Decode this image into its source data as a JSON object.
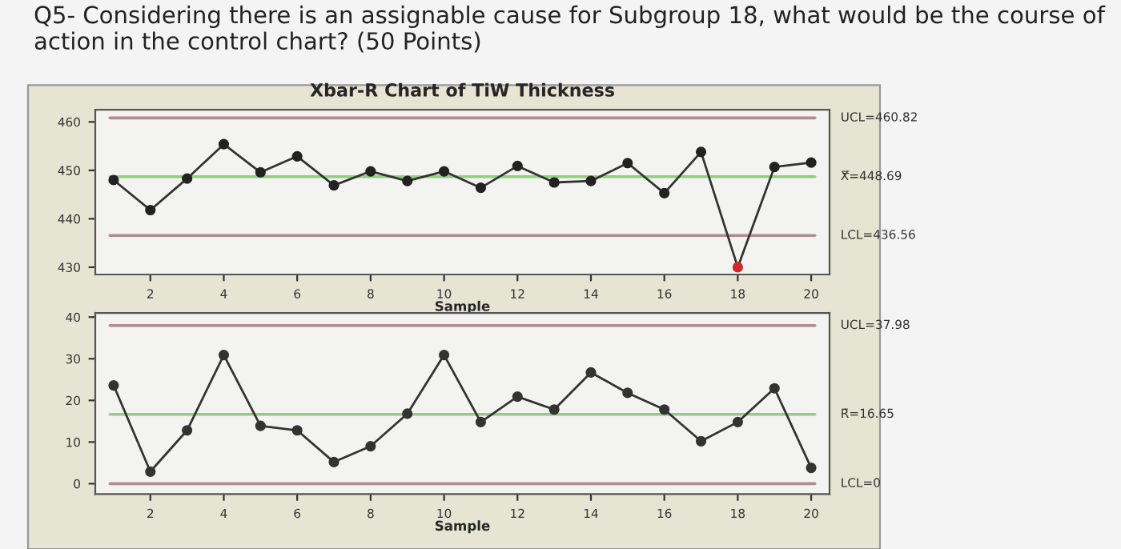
{
  "chart_data": [
    {
      "type": "line",
      "title": "Xbar-R Chart of TiW Thickness",
      "annotations": [
        "Q5- Considering there is an assignable cause for Subgroup 18, what would be the course of action in the control chart? (50 Points)"
      ],
      "x": [
        1,
        2,
        3,
        4,
        5,
        6,
        7,
        8,
        9,
        10,
        11,
        12,
        13,
        14,
        15,
        16,
        17,
        18,
        19,
        20
      ],
      "series": [
        {
          "color": "#333333",
          "colors": [
            "#222222",
            "#222222",
            "#222222",
            "#222222",
            "#222222",
            "#222222",
            "#222222",
            "#222222",
            "#222222",
            "#222222",
            "#222222",
            "#222222",
            "#222222",
            "#222222",
            "#222222",
            "#222222",
            "#222222",
            "#d62728",
            "#222222",
            "#222222"
          ],
          "values": [
            448,
            441.8,
            448.3,
            455.4,
            449.6,
            452.9,
            446.9,
            449.8,
            447.8,
            449.8,
            446.4,
            450.9,
            447.5,
            447.8,
            451.5,
            445.3,
            453.8,
            430,
            450.7,
            451.6
          ]
        }
      ],
      "xlabel": "Sample",
      "xlim": [
        0.5,
        20.5
      ],
      "xticks": [
        2,
        4,
        6,
        8,
        10,
        12,
        14,
        16,
        18,
        20
      ],
      "ylim": [
        428.5,
        462.5
      ],
      "yticks": [
        430,
        440,
        450,
        460
      ],
      "ref_lines": [
        {
          "axis": "y",
          "value": 460.82,
          "label": "UCL=460.82",
          "color": "#b08a94"
        },
        {
          "axis": "y",
          "value": 448.69,
          "label": "X̿=448.69",
          "color": "#8fcf7f"
        },
        {
          "axis": "y",
          "value": 436.56,
          "label": "LCL=436.56",
          "color": "#b08a94"
        }
      ],
      "marker": "circle",
      "grid": false
    },
    {
      "type": "line",
      "x": [
        1,
        2,
        3,
        4,
        5,
        6,
        7,
        8,
        9,
        10,
        11,
        12,
        13,
        14,
        15,
        16,
        17,
        18,
        19,
        20
      ],
      "series": [
        {
          "color": "#333333",
          "values": [
            23.6,
            2.9,
            12.8,
            30.9,
            13.9,
            12.8,
            5.2,
            9,
            16.8,
            30.9,
            14.8,
            20.9,
            17.8,
            26.7,
            21.8,
            17.8,
            10.2,
            14.8,
            22.9,
            3.8
          ]
        }
      ],
      "xlabel": "Sample",
      "xlim": [
        0.5,
        20.5
      ],
      "xticks": [
        2,
        4,
        6,
        8,
        10,
        12,
        14,
        16,
        18,
        20
      ],
      "ylim": [
        -2.5,
        41
      ],
      "yticks": [
        0,
        10,
        20,
        30,
        40
      ],
      "ref_lines": [
        {
          "axis": "y",
          "value": 37.98,
          "label": "UCL=37.98",
          "color": "#b08a94"
        },
        {
          "axis": "y",
          "value": 16.65,
          "label": "R̄=16.65",
          "color": "#8fcf7f"
        },
        {
          "axis": "y",
          "value": 0,
          "label": "LCL=0",
          "color": "#b08a94"
        }
      ],
      "marker": "circle",
      "grid": false
    }
  ]
}
